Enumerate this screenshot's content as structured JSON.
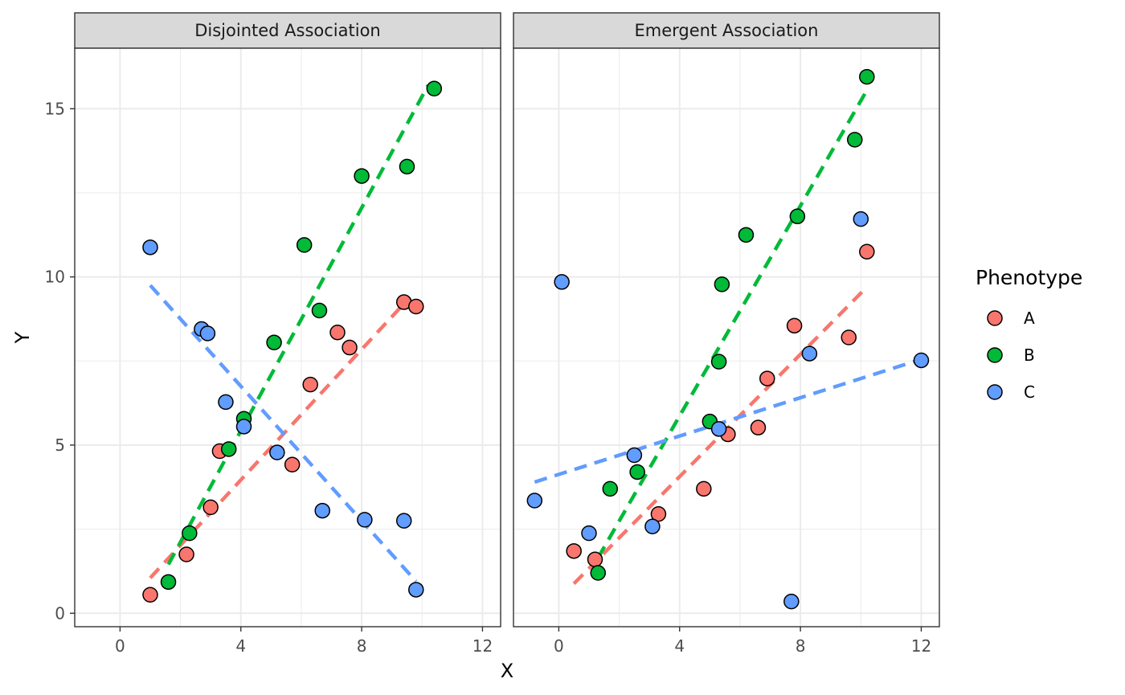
{
  "chart_data": {
    "type": "scatter",
    "xlabel": "X",
    "ylabel": "Y",
    "xlim": [
      -1.5,
      12.6
    ],
    "ylim": [
      -0.4,
      16.8
    ],
    "xticks": [
      0,
      4,
      8,
      12
    ],
    "yticks": [
      0,
      5,
      10,
      15
    ],
    "grid": true,
    "legend": {
      "title": "Phenotype",
      "position": "right",
      "entries": [
        {
          "label": "A",
          "color": "#f8766d"
        },
        {
          "label": "B",
          "color": "#00ba38"
        },
        {
          "label": "C",
          "color": "#619cff"
        }
      ]
    },
    "panels": [
      {
        "title": "Disjointed Association",
        "series": [
          {
            "name": "A",
            "color": "#f8766d",
            "points": [
              [
                1.0,
                0.55
              ],
              [
                2.2,
                1.75
              ],
              [
                3.0,
                3.15
              ],
              [
                3.3,
                4.82
              ],
              [
                5.7,
                4.42
              ],
              [
                6.3,
                6.8
              ],
              [
                7.2,
                8.35
              ],
              [
                7.6,
                7.9
              ],
              [
                9.4,
                9.25
              ],
              [
                9.8,
                9.12
              ]
            ],
            "fit": [
              [
                1.0,
                1.05
              ],
              [
                9.6,
                9.4
              ]
            ]
          },
          {
            "name": "B",
            "color": "#00ba38",
            "points": [
              [
                1.6,
                0.93
              ],
              [
                2.3,
                2.38
              ],
              [
                3.6,
                4.88
              ],
              [
                4.1,
                5.78
              ],
              [
                5.1,
                8.05
              ],
              [
                6.1,
                10.95
              ],
              [
                6.6,
                9.0
              ],
              [
                8.0,
                13.0
              ],
              [
                9.5,
                13.28
              ],
              [
                10.4,
                15.6
              ]
            ],
            "fit": [
              [
                1.6,
                1.45
              ],
              [
                10.2,
                15.7
              ]
            ]
          },
          {
            "name": "C",
            "color": "#619cff",
            "points": [
              [
                1.0,
                10.88
              ],
              [
                2.7,
                8.45
              ],
              [
                2.9,
                8.32
              ],
              [
                3.5,
                6.28
              ],
              [
                4.1,
                5.55
              ],
              [
                5.2,
                4.78
              ],
              [
                6.7,
                3.05
              ],
              [
                8.1,
                2.78
              ],
              [
                9.4,
                2.75
              ],
              [
                9.8,
                0.7
              ]
            ],
            "fit": [
              [
                1.0,
                9.75
              ],
              [
                9.8,
                0.95
              ]
            ]
          }
        ]
      },
      {
        "title": "Emergent Association",
        "series": [
          {
            "name": "A",
            "color": "#f8766d",
            "points": [
              [
                0.5,
                1.85
              ],
              [
                1.2,
                1.6
              ],
              [
                3.3,
                2.95
              ],
              [
                4.8,
                3.7
              ],
              [
                5.6,
                5.32
              ],
              [
                6.6,
                5.52
              ],
              [
                6.9,
                6.98
              ],
              [
                7.8,
                8.55
              ],
              [
                9.6,
                8.2
              ],
              [
                10.2,
                10.75
              ]
            ],
            "fit": [
              [
                0.5,
                0.88
              ],
              [
                10.2,
                9.7
              ]
            ]
          },
          {
            "name": "B",
            "color": "#00ba38",
            "points": [
              [
                1.3,
                1.2
              ],
              [
                1.7,
                3.7
              ],
              [
                2.6,
                4.2
              ],
              [
                5.0,
                5.7
              ],
              [
                5.3,
                7.48
              ],
              [
                5.4,
                9.78
              ],
              [
                6.2,
                11.25
              ],
              [
                7.9,
                11.8
              ],
              [
                9.8,
                14.08
              ],
              [
                10.2,
                15.95
              ]
            ],
            "fit": [
              [
                1.3,
                1.65
              ],
              [
                10.2,
                15.55
              ]
            ]
          },
          {
            "name": "C",
            "color": "#619cff",
            "points": [
              [
                -0.8,
                3.35
              ],
              [
                0.1,
                9.85
              ],
              [
                1.0,
                2.38
              ],
              [
                2.5,
                4.7
              ],
              [
                3.1,
                2.58
              ],
              [
                5.3,
                5.48
              ],
              [
                7.7,
                0.35
              ],
              [
                8.3,
                7.72
              ],
              [
                10.0,
                11.72
              ],
              [
                12.0,
                7.52
              ]
            ],
            "fit": [
              [
                -0.8,
                3.9
              ],
              [
                12.0,
                7.55
              ]
            ]
          }
        ]
      }
    ]
  }
}
